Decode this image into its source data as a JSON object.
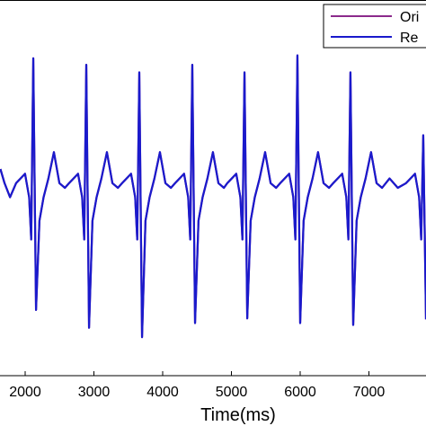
{
  "chart_data": {
    "type": "line",
    "x_label": "Time(ms)",
    "xlim": [
      1634,
      7830
    ],
    "xticks": [
      2000,
      3000,
      4000,
      5000,
      6000,
      7000
    ],
    "ylim": [
      -2,
      2
    ],
    "legend": "upper right",
    "x": [
      1640,
      1700,
      1780,
      1868,
      1998,
      2058,
      2088,
      2118,
      2158,
      2208,
      2268,
      2338,
      2418,
      2498,
      2578,
      2639,
      2769,
      2829,
      2859,
      2889,
      2929,
      2979,
      3039,
      3109,
      3189,
      3269,
      3349,
      3410,
      3540,
      3600,
      3630,
      3660,
      3700,
      3750,
      3810,
      3880,
      3960,
      4040,
      4120,
      4181,
      4311,
      4371,
      4401,
      4431,
      4471,
      4521,
      4581,
      4651,
      4731,
      4811,
      4891,
      4940,
      5070,
      5130,
      5160,
      5190,
      5230,
      5280,
      5340,
      5410,
      5490,
      5570,
      5650,
      5710,
      5840,
      5900,
      5930,
      5960,
      6000,
      6050,
      6110,
      6180,
      6260,
      6340,
      6420,
      6481,
      6611,
      6671,
      6701,
      6731,
      6771,
      6821,
      6881,
      6951,
      7031,
      7111,
      7191,
      7300,
      7420,
      7540,
      7670,
      7730,
      7760,
      7790,
      7830
    ],
    "series": [
      {
        "name": "Ori",
        "color": "#8b2a8b",
        "values": [
          0.2,
          0.05,
          -0.1,
          0.05,
          0.15,
          -0.1,
          -0.55,
          1.38,
          -1.3,
          -0.35,
          -0.1,
          0.1,
          0.38,
          0.05,
          0.0,
          0.05,
          0.15,
          -0.1,
          -0.55,
          1.31,
          -1.49,
          -0.35,
          -0.1,
          0.1,
          0.38,
          0.05,
          0.0,
          0.05,
          0.15,
          -0.1,
          -0.55,
          1.23,
          -1.59,
          -0.35,
          -0.1,
          0.1,
          0.38,
          0.05,
          0.0,
          0.05,
          0.15,
          -0.1,
          -0.55,
          1.31,
          -1.44,
          -0.35,
          -0.1,
          0.1,
          0.38,
          0.05,
          0.0,
          0.05,
          0.15,
          -0.1,
          -0.55,
          1.23,
          -1.39,
          -0.35,
          -0.1,
          0.1,
          0.38,
          0.05,
          0.0,
          0.05,
          0.15,
          -0.1,
          -0.55,
          1.41,
          -1.44,
          -0.35,
          -0.1,
          0.1,
          0.38,
          0.05,
          0.0,
          0.05,
          0.15,
          -0.1,
          -0.55,
          1.23,
          -1.46,
          -0.35,
          -0.1,
          0.1,
          0.38,
          0.05,
          0.0,
          0.1,
          0.0,
          0.05,
          0.15,
          -0.1,
          -0.55,
          0.56,
          -1.4
        ]
      },
      {
        "name": "Re",
        "color": "#1a1acc",
        "values": [
          0.2,
          0.05,
          -0.1,
          0.05,
          0.15,
          -0.1,
          -0.55,
          1.38,
          -1.3,
          -0.35,
          -0.1,
          0.1,
          0.38,
          0.05,
          0.0,
          0.05,
          0.15,
          -0.1,
          -0.55,
          1.31,
          -1.49,
          -0.35,
          -0.1,
          0.1,
          0.38,
          0.05,
          0.0,
          0.05,
          0.15,
          -0.1,
          -0.55,
          1.23,
          -1.59,
          -0.35,
          -0.1,
          0.1,
          0.38,
          0.05,
          0.0,
          0.05,
          0.15,
          -0.1,
          -0.55,
          1.31,
          -1.44,
          -0.35,
          -0.1,
          0.1,
          0.38,
          0.05,
          0.0,
          0.05,
          0.15,
          -0.1,
          -0.55,
          1.23,
          -1.39,
          -0.35,
          -0.1,
          0.1,
          0.38,
          0.05,
          0.0,
          0.05,
          0.15,
          -0.1,
          -0.55,
          1.41,
          -1.44,
          -0.35,
          -0.1,
          0.1,
          0.38,
          0.05,
          0.0,
          0.05,
          0.15,
          -0.1,
          -0.55,
          1.23,
          -1.46,
          -0.35,
          -0.1,
          0.1,
          0.38,
          0.05,
          0.0,
          0.1,
          0.0,
          0.05,
          0.15,
          -0.1,
          -0.55,
          0.56,
          -1.4
        ]
      }
    ]
  }
}
